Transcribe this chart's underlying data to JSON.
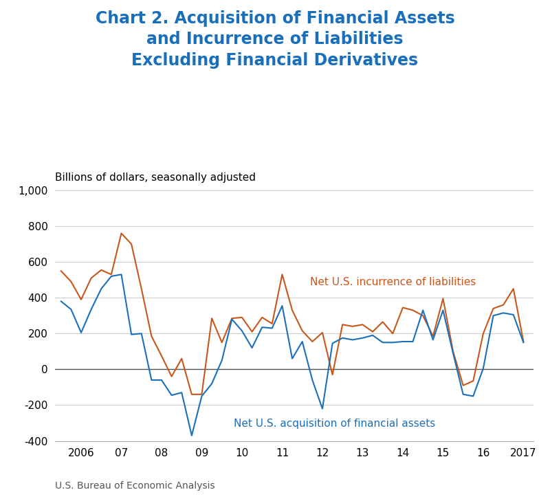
{
  "title": "Chart 2. Acquisition of Financial Assets\nand Incurrence of Liabilities\nExcluding Financial Derivatives",
  "subtitle": "Billions of dollars, seasonally adjusted",
  "footnote": "U.S. Bureau of Economic Analysis",
  "title_color": "#1a6fba",
  "line_color_liabilities": "#c8561a",
  "line_color_assets": "#1a6fba",
  "label_liabilities": "Net U.S. incurrence of liabilities",
  "label_assets": "Net U.S. acquisition of financial assets",
  "ylim": [
    -400,
    1000
  ],
  "yticks": [
    -400,
    -200,
    0,
    200,
    400,
    600,
    800,
    1000
  ],
  "xtick_labels": [
    "2006",
    "07",
    "08",
    "09",
    "10",
    "11",
    "12",
    "13",
    "14",
    "15",
    "16",
    "2017"
  ],
  "xtick_positions": [
    2006.0,
    2007.0,
    2008.0,
    2009.0,
    2010.0,
    2011.0,
    2012.0,
    2013.0,
    2014.0,
    2015.0,
    2016.0,
    2017.0
  ],
  "liabilities": [
    [
      2005.5,
      550
    ],
    [
      2005.75,
      490
    ],
    [
      2006.0,
      390
    ],
    [
      2006.25,
      510
    ],
    [
      2006.5,
      555
    ],
    [
      2006.75,
      530
    ],
    [
      2007.0,
      760
    ],
    [
      2007.25,
      700
    ],
    [
      2007.5,
      450
    ],
    [
      2007.75,
      185
    ],
    [
      2008.0,
      75
    ],
    [
      2008.25,
      -40
    ],
    [
      2008.5,
      60
    ],
    [
      2008.75,
      -140
    ],
    [
      2009.0,
      -140
    ],
    [
      2009.25,
      285
    ],
    [
      2009.5,
      150
    ],
    [
      2009.75,
      285
    ],
    [
      2010.0,
      290
    ],
    [
      2010.25,
      210
    ],
    [
      2010.5,
      290
    ],
    [
      2010.75,
      255
    ],
    [
      2011.0,
      530
    ],
    [
      2011.25,
      330
    ],
    [
      2011.5,
      215
    ],
    [
      2011.75,
      155
    ],
    [
      2012.0,
      205
    ],
    [
      2012.25,
      -30
    ],
    [
      2012.5,
      250
    ],
    [
      2012.75,
      240
    ],
    [
      2013.0,
      250
    ],
    [
      2013.25,
      210
    ],
    [
      2013.5,
      265
    ],
    [
      2013.75,
      200
    ],
    [
      2014.0,
      345
    ],
    [
      2014.25,
      330
    ],
    [
      2014.5,
      300
    ],
    [
      2014.75,
      185
    ],
    [
      2015.0,
      395
    ],
    [
      2015.25,
      100
    ],
    [
      2015.5,
      -90
    ],
    [
      2015.75,
      -65
    ],
    [
      2016.0,
      200
    ],
    [
      2016.25,
      340
    ],
    [
      2016.5,
      360
    ],
    [
      2016.75,
      450
    ],
    [
      2017.0,
      155
    ]
  ],
  "assets": [
    [
      2005.5,
      380
    ],
    [
      2005.75,
      335
    ],
    [
      2006.0,
      205
    ],
    [
      2006.25,
      335
    ],
    [
      2006.5,
      450
    ],
    [
      2006.75,
      520
    ],
    [
      2007.0,
      530
    ],
    [
      2007.25,
      195
    ],
    [
      2007.5,
      200
    ],
    [
      2007.75,
      -60
    ],
    [
      2008.0,
      -60
    ],
    [
      2008.25,
      -145
    ],
    [
      2008.5,
      -130
    ],
    [
      2008.75,
      -370
    ],
    [
      2009.0,
      -150
    ],
    [
      2009.25,
      -80
    ],
    [
      2009.5,
      50
    ],
    [
      2009.75,
      280
    ],
    [
      2010.0,
      215
    ],
    [
      2010.25,
      120
    ],
    [
      2010.5,
      235
    ],
    [
      2010.75,
      230
    ],
    [
      2011.0,
      355
    ],
    [
      2011.25,
      60
    ],
    [
      2011.5,
      155
    ],
    [
      2011.75,
      -60
    ],
    [
      2012.0,
      -220
    ],
    [
      2012.25,
      145
    ],
    [
      2012.5,
      175
    ],
    [
      2012.75,
      165
    ],
    [
      2013.0,
      175
    ],
    [
      2013.25,
      190
    ],
    [
      2013.5,
      150
    ],
    [
      2013.75,
      150
    ],
    [
      2014.0,
      155
    ],
    [
      2014.25,
      155
    ],
    [
      2014.5,
      330
    ],
    [
      2014.75,
      165
    ],
    [
      2015.0,
      330
    ],
    [
      2015.25,
      90
    ],
    [
      2015.5,
      -140
    ],
    [
      2015.75,
      -150
    ],
    [
      2016.0,
      5
    ],
    [
      2016.25,
      300
    ],
    [
      2016.5,
      315
    ],
    [
      2016.75,
      305
    ],
    [
      2017.0,
      150
    ]
  ]
}
